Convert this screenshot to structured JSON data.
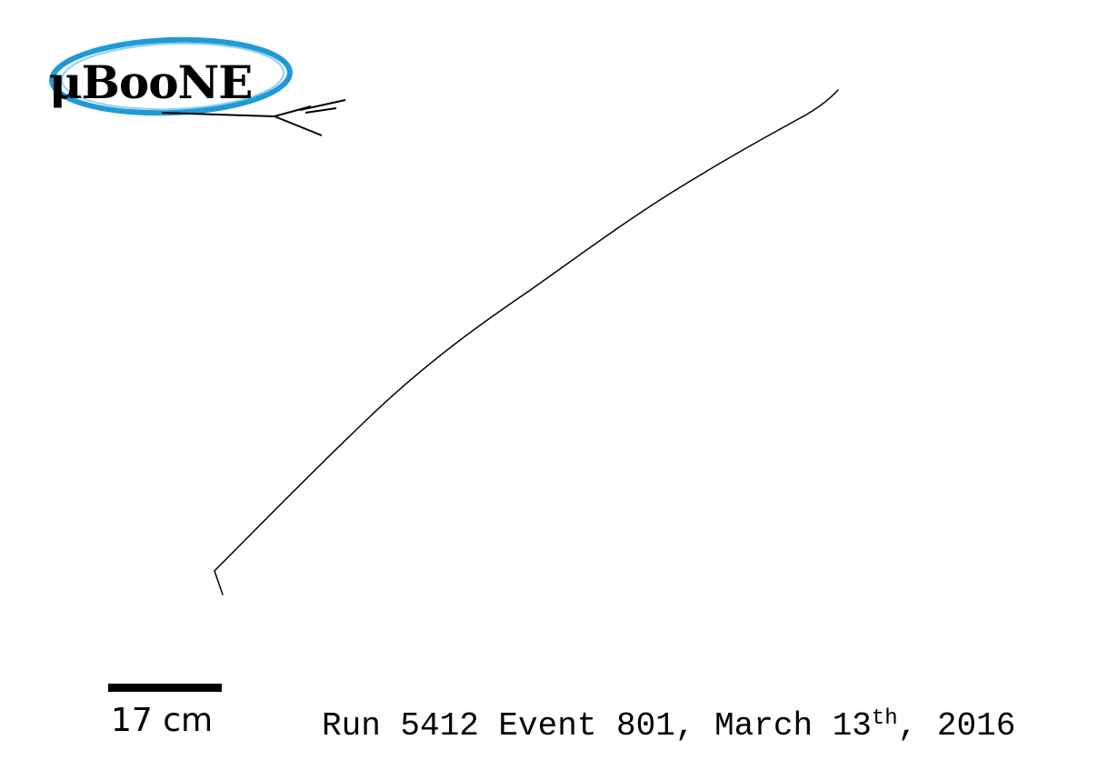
{
  "logo": {
    "text": "μBooNE",
    "ring_color": "#1f9ad6",
    "ring_light_color": "#8fd0ee"
  },
  "track": {
    "color": "#000000",
    "name": "muon-track"
  },
  "scale": {
    "label": "17 cm"
  },
  "event_info": {
    "prefix": "Run 5412 Event 801, March 13",
    "ordinal_suffix": "th",
    "year_suffix": ", 2016"
  }
}
